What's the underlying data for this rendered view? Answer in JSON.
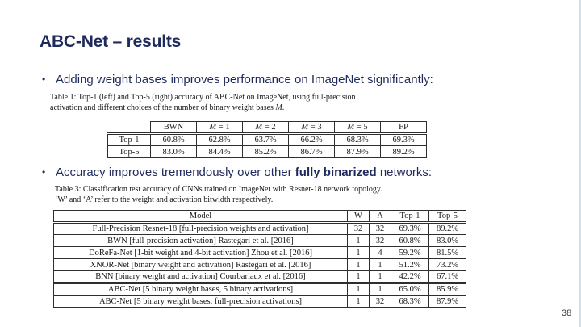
{
  "slide": {
    "title": "ABC-Net – results",
    "page_number": "38"
  },
  "bullets": [
    {
      "marker": "•",
      "text": "Adding weight bases improves performance on ImageNet significantly:"
    },
    {
      "marker": "•",
      "before": "Accuracy improves tremendously over other ",
      "bold": "fully binarized",
      "after": " networks:"
    }
  ],
  "table1": {
    "caption": {
      "line1": "Table 1: Top-1 (left) and Top-5 (right) accuracy of ABC-Net on ImageNet, using full-precision",
      "line2_before": "activation and different choices of the number of binary weight bases ",
      "line2_var": "M",
      "line2_after": "."
    },
    "headers": [
      {
        "var": "",
        "rest": ""
      },
      {
        "var": "",
        "rest": "BWN"
      },
      {
        "var": "M",
        "rest": " = 1"
      },
      {
        "var": "M",
        "rest": " = 2"
      },
      {
        "var": "M",
        "rest": " = 3"
      },
      {
        "var": "M",
        "rest": " = 5"
      },
      {
        "var": "",
        "rest": "FP"
      }
    ],
    "rows": [
      {
        "label": "Top-1",
        "values": [
          "60.8%",
          "62.8%",
          "63.7%",
          "66.2%",
          "68.3%",
          "69.3%"
        ]
      },
      {
        "label": "Top-5",
        "values": [
          "83.0%",
          "84.4%",
          "85.2%",
          "86.7%",
          "87.9%",
          "89.2%"
        ]
      }
    ]
  },
  "table3": {
    "caption": {
      "line1": "Table 3: Classification test accuracy of CNNs trained on ImageNet with Resnet-18 network topology.",
      "line2": "‘W’ and ‘A’ refer to the weight and activation bitwidth respectively."
    },
    "headers": [
      "Model",
      "W",
      "A",
      "Top-1",
      "Top-5"
    ],
    "rows": [
      {
        "model": "Full-Precision Resnet-18 [full-precision weights and activation]",
        "w": "32",
        "a": "32",
        "top1": "69.3%",
        "top5": "89.2%"
      },
      {
        "model": "BWN [full-precision activation] Rastegari et al. [2016]",
        "w": "1",
        "a": "32",
        "top1": "60.8%",
        "top5": "83.0%"
      },
      {
        "model": "DoReFa-Net [1-bit weight and 4-bit activation] Zhou et al. [2016]",
        "w": "1",
        "a": "4",
        "top1": "59.2%",
        "top5": "81.5%"
      },
      {
        "model": "XNOR-Net [binary weight and activation] Rastegari et al. [2016]",
        "w": "1",
        "a": "1",
        "top1": "51.2%",
        "top5": "73.2%"
      },
      {
        "model": "BNN [binary weight and activation] Courbariaux et al. [2016]",
        "w": "1",
        "a": "1",
        "top1": "42.2%",
        "top5": "67.1%"
      },
      {
        "model": "ABC-Net [5 binary weight bases, 5 binary activations]",
        "w": "1",
        "a": "1",
        "top1": "65.0%",
        "top5": "85.9%"
      },
      {
        "model": "ABC-Net [5 binary weight bases, full-precision activations]",
        "w": "1",
        "a": "32",
        "top1": "68.3%",
        "top5": "87.9%"
      }
    ]
  }
}
